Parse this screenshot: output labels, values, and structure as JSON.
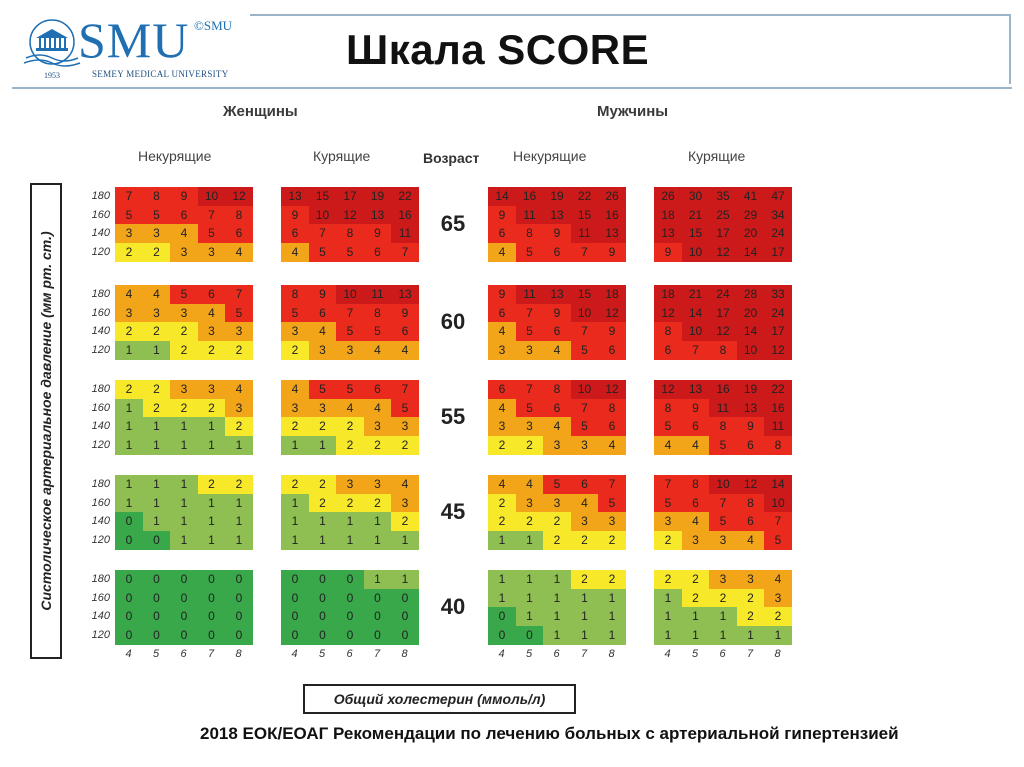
{
  "header": {
    "logo_text": "SMU",
    "logo_small": "©SMU",
    "logo_university": "SEMEY MEDICAL UNIVERSITY",
    "logo_year": "1953",
    "title": "Шкала SCORE"
  },
  "footer": {
    "source": "2018 ЕОК/ЕОАГ Рекомендации по лечению больных с артериальной гипертензией"
  },
  "colors": {
    "dark_red": "#cc1a1a",
    "red": "#ea2a1c",
    "orange": "#f3a51a",
    "yellow": "#f7e82a",
    "light_green": "#8fbe52",
    "green": "#39a84a"
  },
  "chart_data": {
    "type": "heatmap",
    "title": "Шкала SCORE",
    "sex_labels": [
      "Женщины",
      "Мужчины"
    ],
    "smoking_labels": [
      "Некурящие",
      "Курящие"
    ],
    "age_header": "Возраст",
    "ylabel": "Систолическое артериальное давление (мм рт. ст.)",
    "xlabel": "Общий холестерин (ммоль/л)",
    "ages": [
      "65",
      "60",
      "55",
      "45",
      "40"
    ],
    "bp_levels": [
      "180",
      "160",
      "140",
      "120"
    ],
    "cholesterol": [
      "4",
      "5",
      "6",
      "7",
      "8"
    ],
    "panels": [
      {
        "sex": "Женщины",
        "smoking": "Некурящие",
        "values": [
          [
            [
              7,
              8,
              9,
              10,
              12
            ],
            [
              5,
              5,
              6,
              7,
              8
            ],
            [
              3,
              3,
              4,
              5,
              6
            ],
            [
              2,
              2,
              3,
              3,
              4
            ]
          ],
          [
            [
              4,
              4,
              5,
              6,
              7
            ],
            [
              3,
              3,
              3,
              4,
              5
            ],
            [
              2,
              2,
              2,
              3,
              3
            ],
            [
              1,
              1,
              2,
              2,
              2
            ]
          ],
          [
            [
              2,
              2,
              3,
              3,
              4
            ],
            [
              1,
              2,
              2,
              2,
              3
            ],
            [
              1,
              1,
              1,
              1,
              2
            ],
            [
              1,
              1,
              1,
              1,
              1
            ]
          ],
          [
            [
              1,
              1,
              1,
              2,
              2
            ],
            [
              1,
              1,
              1,
              1,
              1
            ],
            [
              0,
              1,
              1,
              1,
              1
            ],
            [
              0,
              0,
              1,
              1,
              1
            ]
          ],
          [
            [
              0,
              0,
              0,
              0,
              0
            ],
            [
              0,
              0,
              0,
              0,
              0
            ],
            [
              0,
              0,
              0,
              0,
              0
            ],
            [
              0,
              0,
              0,
              0,
              0
            ]
          ]
        ]
      },
      {
        "sex": "Женщины",
        "smoking": "Курящие",
        "values": [
          [
            [
              13,
              15,
              17,
              19,
              22
            ],
            [
              9,
              10,
              12,
              13,
              16
            ],
            [
              6,
              7,
              8,
              9,
              11
            ],
            [
              4,
              5,
              5,
              6,
              7
            ]
          ],
          [
            [
              8,
              9,
              10,
              11,
              13
            ],
            [
              5,
              6,
              7,
              8,
              9
            ],
            [
              3,
              4,
              5,
              5,
              6
            ],
            [
              2,
              3,
              3,
              4,
              4
            ]
          ],
          [
            [
              4,
              5,
              5,
              6,
              7
            ],
            [
              3,
              3,
              4,
              4,
              5
            ],
            [
              2,
              2,
              2,
              3,
              3
            ],
            [
              1,
              1,
              2,
              2,
              2
            ]
          ],
          [
            [
              2,
              2,
              3,
              3,
              4
            ],
            [
              1,
              2,
              2,
              2,
              3
            ],
            [
              1,
              1,
              1,
              1,
              2
            ],
            [
              1,
              1,
              1,
              1,
              1
            ]
          ],
          [
            [
              0,
              0,
              0,
              1,
              1
            ],
            [
              0,
              0,
              0,
              0,
              0
            ],
            [
              0,
              0,
              0,
              0,
              0
            ],
            [
              0,
              0,
              0,
              0,
              0
            ]
          ]
        ]
      },
      {
        "sex": "Мужчины",
        "smoking": "Некурящие",
        "values": [
          [
            [
              14,
              16,
              19,
              22,
              26
            ],
            [
              9,
              11,
              13,
              15,
              16
            ],
            [
              6,
              8,
              9,
              11,
              13
            ],
            [
              4,
              5,
              6,
              7,
              9
            ]
          ],
          [
            [
              9,
              11,
              13,
              15,
              18
            ],
            [
              6,
              7,
              9,
              10,
              12
            ],
            [
              4,
              5,
              6,
              7,
              9
            ],
            [
              3,
              3,
              4,
              5,
              6
            ]
          ],
          [
            [
              6,
              7,
              8,
              10,
              12
            ],
            [
              4,
              5,
              6,
              7,
              8
            ],
            [
              3,
              3,
              4,
              5,
              6
            ],
            [
              2,
              2,
              3,
              3,
              4
            ]
          ],
          [
            [
              4,
              4,
              5,
              6,
              7
            ],
            [
              2,
              3,
              3,
              4,
              5
            ],
            [
              2,
              2,
              2,
              3,
              3
            ],
            [
              1,
              1,
              2,
              2,
              2
            ]
          ],
          [
            [
              1,
              1,
              1,
              2,
              2
            ],
            [
              1,
              1,
              1,
              1,
              1
            ],
            [
              0,
              1,
              1,
              1,
              1
            ],
            [
              0,
              0,
              1,
              1,
              1
            ]
          ]
        ]
      },
      {
        "sex": "Мужчины",
        "smoking": "Курящие",
        "values": [
          [
            [
              26,
              30,
              35,
              41,
              47
            ],
            [
              18,
              21,
              25,
              29,
              34
            ],
            [
              13,
              15,
              17,
              20,
              24
            ],
            [
              9,
              10,
              12,
              14,
              17
            ]
          ],
          [
            [
              18,
              21,
              24,
              28,
              33
            ],
            [
              12,
              14,
              17,
              20,
              24
            ],
            [
              8,
              10,
              12,
              14,
              17
            ],
            [
              6,
              7,
              8,
              10,
              12
            ]
          ],
          [
            [
              12,
              13,
              16,
              19,
              22
            ],
            [
              8,
              9,
              11,
              13,
              16
            ],
            [
              5,
              6,
              8,
              9,
              11
            ],
            [
              4,
              4,
              5,
              6,
              8
            ]
          ],
          [
            [
              7,
              8,
              10,
              12,
              14
            ],
            [
              5,
              6,
              7,
              8,
              10
            ],
            [
              3,
              4,
              5,
              6,
              7
            ],
            [
              2,
              3,
              3,
              4,
              5
            ]
          ],
          [
            [
              2,
              2,
              3,
              3,
              4
            ],
            [
              1,
              2,
              2,
              2,
              3
            ],
            [
              1,
              1,
              1,
              2,
              2
            ],
            [
              1,
              1,
              1,
              1,
              1
            ]
          ]
        ]
      }
    ]
  }
}
